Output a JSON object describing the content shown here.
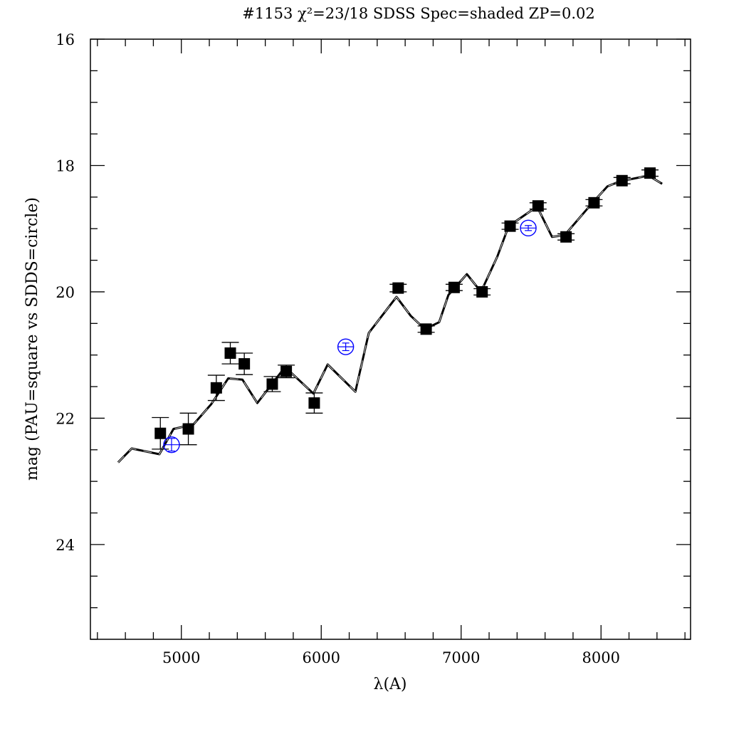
{
  "chart_data": {
    "type": "scatter",
    "title": "#1153 χ²=23/18 SDSS Spec=shaded ZP=0.02",
    "xlabel": "λ(A)",
    "ylabel": "mag (PAU=square vs SDDS=circle)",
    "xlim": [
      4350,
      8640
    ],
    "ylim": [
      16,
      25.5
    ],
    "y_inverted": true,
    "grid": false,
    "x_ticks": [
      5000,
      6000,
      7000,
      8000
    ],
    "x_minor_step": 200,
    "y_ticks": [
      16,
      18,
      20,
      22,
      24
    ],
    "y_minor_step": 0.5,
    "colors": {
      "pau": "#000000",
      "sdss": "#0000ff",
      "model": "#000000"
    },
    "series": [
      {
        "marker": "filled-square",
        "x": [
          4850,
          5050,
          5250,
          5350,
          5450,
          5650,
          5750,
          5950,
          6550,
          6750,
          6950,
          7150,
          7350,
          7550,
          7750,
          7950,
          8150,
          8350
        ],
        "y": [
          22.24,
          22.17,
          21.52,
          20.97,
          21.14,
          21.46,
          21.26,
          21.76,
          19.94,
          20.59,
          19.93,
          20.0,
          18.96,
          18.64,
          19.13,
          18.59,
          18.24,
          18.12
        ],
        "yerr": [
          0.25,
          0.25,
          0.2,
          0.17,
          0.17,
          0.12,
          0.1,
          0.16,
          0.06,
          0.05,
          0.05,
          0.05,
          0.05,
          0.05,
          0.05,
          0.05,
          0.05,
          0.05
        ]
      },
      {
        "marker": "open-circle",
        "x": [
          4930,
          6175,
          7480
        ],
        "y": [
          22.42,
          20.87,
          18.99
        ],
        "yerr": [
          0.1,
          0.06,
          0.04
        ]
      },
      {
        "marker": "line",
        "x": [
          4548,
          4645,
          4843,
          4944,
          5086,
          5213,
          5335,
          5437,
          5543,
          5741,
          5944,
          6046,
          6244,
          6340,
          6538,
          6640,
          6741,
          6843,
          6909,
          7041,
          7142,
          7259,
          7340,
          7543,
          7650,
          7741,
          7939,
          8046,
          8137,
          8340,
          8437
        ],
        "y": [
          22.7,
          22.48,
          22.57,
          22.17,
          22.1,
          21.78,
          21.37,
          21.39,
          21.76,
          21.19,
          21.61,
          21.15,
          21.58,
          20.65,
          20.08,
          20.38,
          20.59,
          20.48,
          20.05,
          19.72,
          20.0,
          19.44,
          18.96,
          18.65,
          19.13,
          19.1,
          18.59,
          18.33,
          18.25,
          18.16,
          18.29
        ]
      }
    ]
  }
}
